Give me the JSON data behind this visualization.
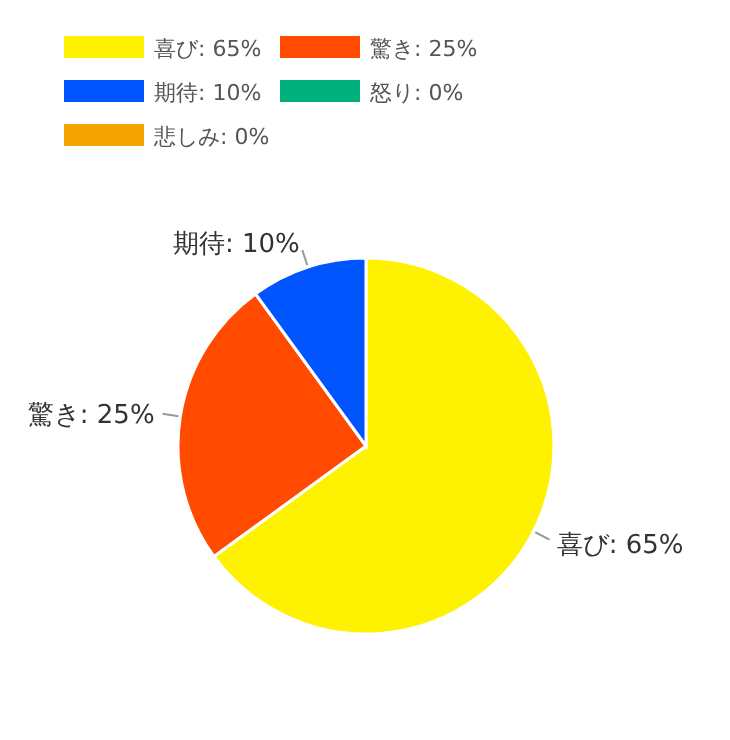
{
  "chart_data": {
    "type": "pie",
    "legend": "top left",
    "categories": [
      "喜び: 65%",
      "驚き: 25%",
      "期待: 10%",
      "怒り: 0%",
      "悲しみ: 0%"
    ],
    "values": [
      65,
      25,
      10,
      0,
      0
    ],
    "colors": [
      "#fff200",
      "#ff4a00",
      "#0055ff",
      "#00b07a",
      "#f5a300"
    ]
  }
}
